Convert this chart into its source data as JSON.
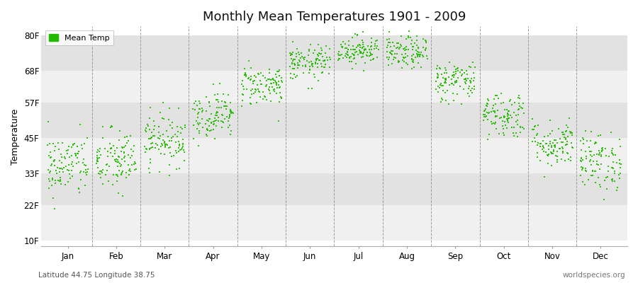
{
  "title": "Monthly Mean Temperatures 1901 - 2009",
  "ylabel": "Temperature",
  "ytick_labels": [
    "10F",
    "22F",
    "33F",
    "45F",
    "57F",
    "68F",
    "80F"
  ],
  "ytick_values": [
    10,
    22,
    33,
    45,
    57,
    68,
    80
  ],
  "ylim": [
    8,
    83
  ],
  "month_labels": [
    "Jan",
    "Feb",
    "Mar",
    "Apr",
    "May",
    "Jun",
    "Jul",
    "Aug",
    "Sep",
    "Oct",
    "Nov",
    "Dec"
  ],
  "dot_color": "#22bb00",
  "bg_color": "#ffffff",
  "bg_stripe_light": "#f0f0f0",
  "bg_stripe_dark": "#e2e2e2",
  "legend_label": "Mean Temp",
  "footnote_left": "Latitude 44.75 Longitude 38.75",
  "footnote_right": "worldspecies.org",
  "monthly_means_F": [
    35.5,
    37.0,
    44.5,
    53.0,
    63.0,
    70.5,
    75.0,
    74.0,
    64.5,
    53.0,
    43.0,
    37.0
  ],
  "monthly_stds_F": [
    5.5,
    5.5,
    4.5,
    4.0,
    3.5,
    3.0,
    2.5,
    2.8,
    3.5,
    4.0,
    4.0,
    5.0
  ],
  "n_years": 109,
  "seed": 42
}
